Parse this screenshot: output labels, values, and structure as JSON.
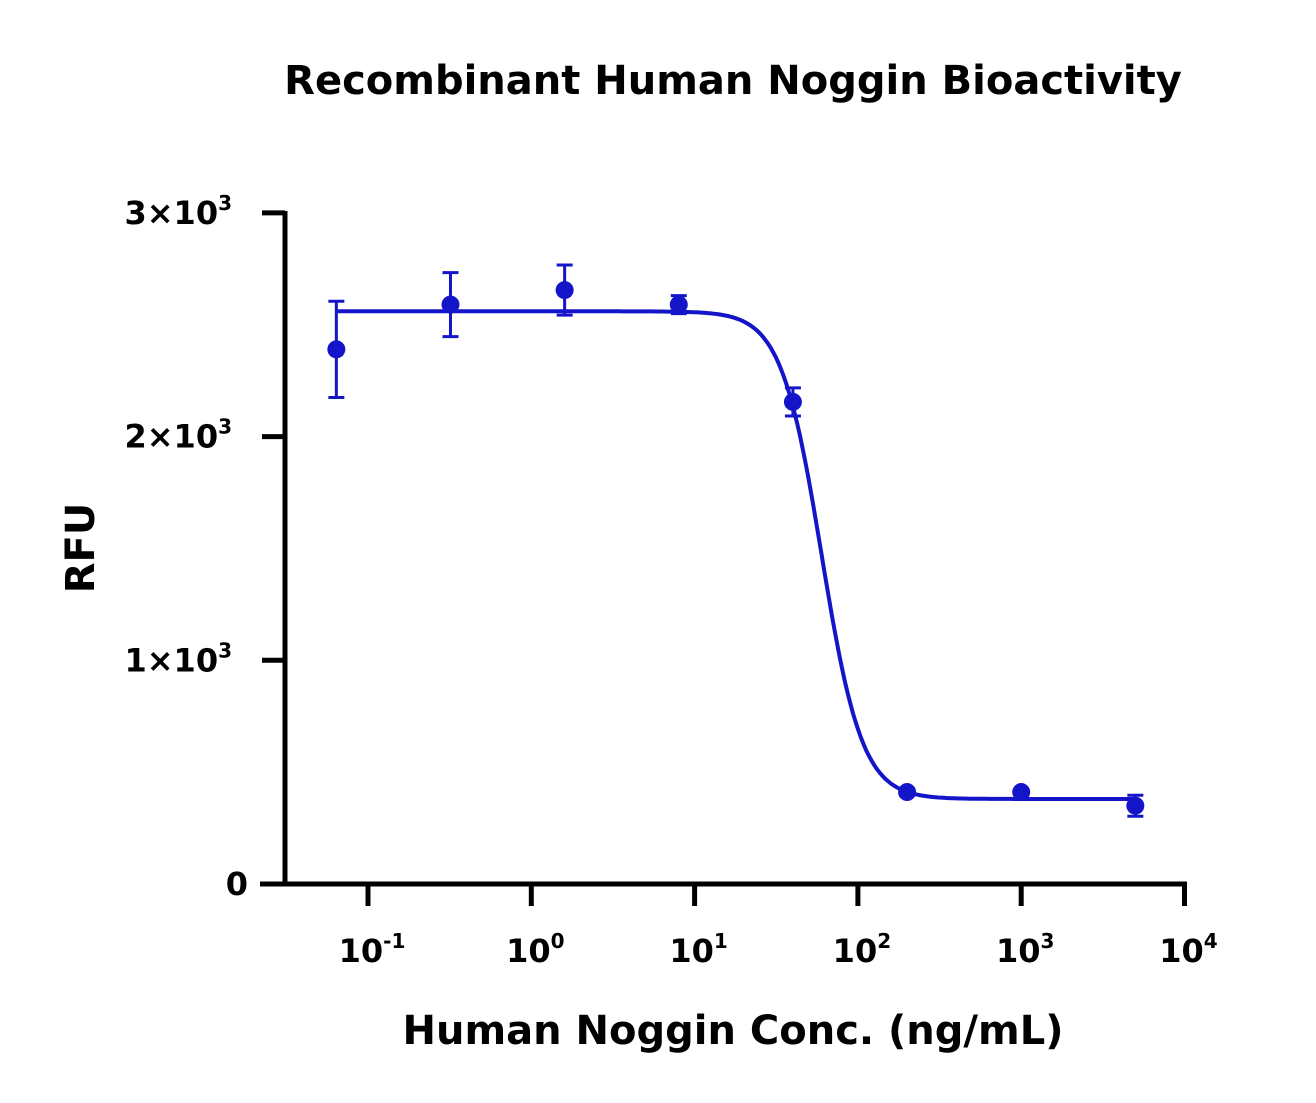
{
  "chart_data": {
    "type": "scatter",
    "title": "Recombinant Human Noggin Bioactivity",
    "xlabel": "Human Noggin Conc. (ng/mL)",
    "ylabel": "RFU",
    "x_scale": "log",
    "xlim": [
      0.03,
      10000
    ],
    "ylim": [
      0,
      3000
    ],
    "x_ticks": [
      {
        "value": 0.1,
        "base": "10",
        "exp": "-1"
      },
      {
        "value": 1,
        "base": "10",
        "exp": "0"
      },
      {
        "value": 10,
        "base": "10",
        "exp": "1"
      },
      {
        "value": 100,
        "base": "10",
        "exp": "2"
      },
      {
        "value": 1000,
        "base": "10",
        "exp": "3"
      },
      {
        "value": 10000,
        "base": "10",
        "exp": "4"
      }
    ],
    "y_ticks": [
      {
        "value": 0,
        "label": "0",
        "exp": ""
      },
      {
        "value": 1000,
        "label": "1×10",
        "exp": "3"
      },
      {
        "value": 2000,
        "label": "2×10",
        "exp": "3"
      },
      {
        "value": 3000,
        "label": "3×10",
        "exp": "3"
      }
    ],
    "grid": false,
    "color": "#1414c8",
    "series": [
      {
        "x": [
          0.064,
          0.32,
          1.6,
          8,
          40,
          200,
          1000,
          5000
        ],
        "y": [
          2390,
          2590,
          2655,
          2590,
          2155,
          411,
          411,
          350
        ],
        "error": [
          215,
          143,
          112,
          40,
          63,
          15,
          10,
          47
        ]
      }
    ],
    "fit": {
      "model": "4PL",
      "top": 2560,
      "bottom": 380,
      "ec50": 60,
      "hill": 3.5
    }
  }
}
